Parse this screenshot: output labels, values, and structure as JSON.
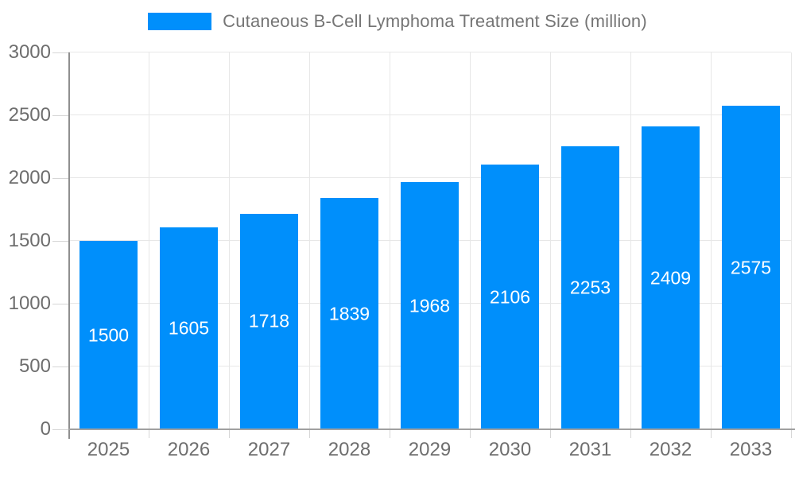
{
  "chart_data": {
    "type": "bar",
    "title": "Cutaneous B-Cell Lymphoma Treatment Size (million)",
    "categories": [
      "2025",
      "2026",
      "2027",
      "2028",
      "2029",
      "2030",
      "2031",
      "2032",
      "2033"
    ],
    "values": [
      1500,
      1605,
      1718,
      1839,
      1968,
      2106,
      2253,
      2409,
      2575
    ],
    "xlabel": "",
    "ylabel": "",
    "ylim": [
      0,
      3000
    ],
    "yticks": [
      0,
      500,
      1000,
      1500,
      2000,
      2500,
      3000
    ],
    "grid": true,
    "legend_position": "top",
    "bar_color": "#008FFB",
    "value_label_color": "#ffffff",
    "axis_label_color": "#6e6e6e",
    "title_color": "#757575",
    "grid_color": "#e7e7e7"
  }
}
